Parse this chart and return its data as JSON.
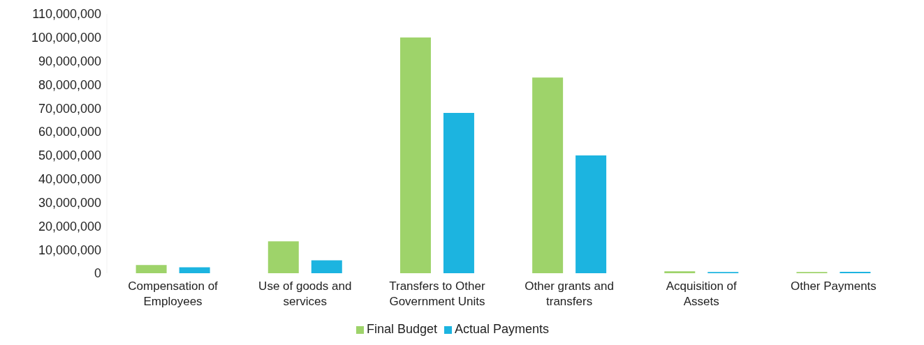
{
  "chart_data": {
    "type": "bar",
    "categories": [
      "Compensation of Employees",
      "Use of goods and services",
      "Transfers to Other Government Units",
      "Other grants and transfers",
      "Acquisition of Assets",
      "Other Payments"
    ],
    "series": [
      {
        "name": "Final Budget",
        "color": "#9ed36a",
        "values": [
          3500000,
          13500000,
          100000000,
          83000000,
          800000,
          500000
        ]
      },
      {
        "name": "Actual Payments",
        "color": "#1cb4e0",
        "values": [
          2500000,
          5500000,
          68000000,
          50000000,
          500000,
          600000
        ]
      }
    ],
    "ylim": [
      0,
      110000000
    ],
    "yticks": [
      {
        "value": 0,
        "label": "0"
      },
      {
        "value": 10000000,
        "label": "10,000,000"
      },
      {
        "value": 20000000,
        "label": "20,000,000"
      },
      {
        "value": 30000000,
        "label": "30,000,000"
      },
      {
        "value": 40000000,
        "label": "40,000,000"
      },
      {
        "value": 50000000,
        "label": "50,000,000"
      },
      {
        "value": 60000000,
        "label": "60,000,000"
      },
      {
        "value": 70000000,
        "label": "70,000,000"
      },
      {
        "value": 80000000,
        "label": "80,000,000"
      },
      {
        "value": 90000000,
        "label": "90,000,000"
      },
      {
        "value": 100000000,
        "label": "100,000,000"
      },
      {
        "value": 110000000,
        "label": "110,000,000"
      }
    ],
    "grid": false,
    "legend": "bottom"
  }
}
